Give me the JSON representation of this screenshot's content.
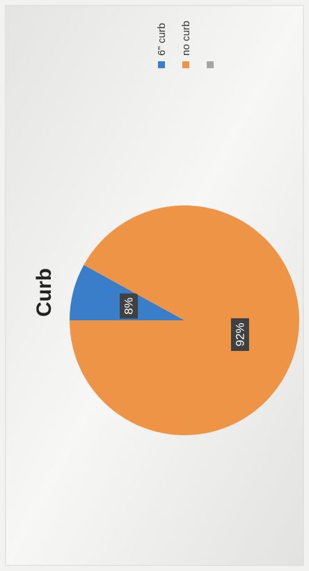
{
  "chart_data": {
    "type": "pie",
    "title": "Curb",
    "categories": [
      "6\" curb",
      "no curb",
      null
    ],
    "values": [
      8,
      92,
      0
    ],
    "value_labels": [
      "8%",
      "92%",
      null
    ],
    "colors": [
      "#3a7dc9",
      "#ee9447",
      "#a5a5a5"
    ],
    "legend": "top-right"
  }
}
